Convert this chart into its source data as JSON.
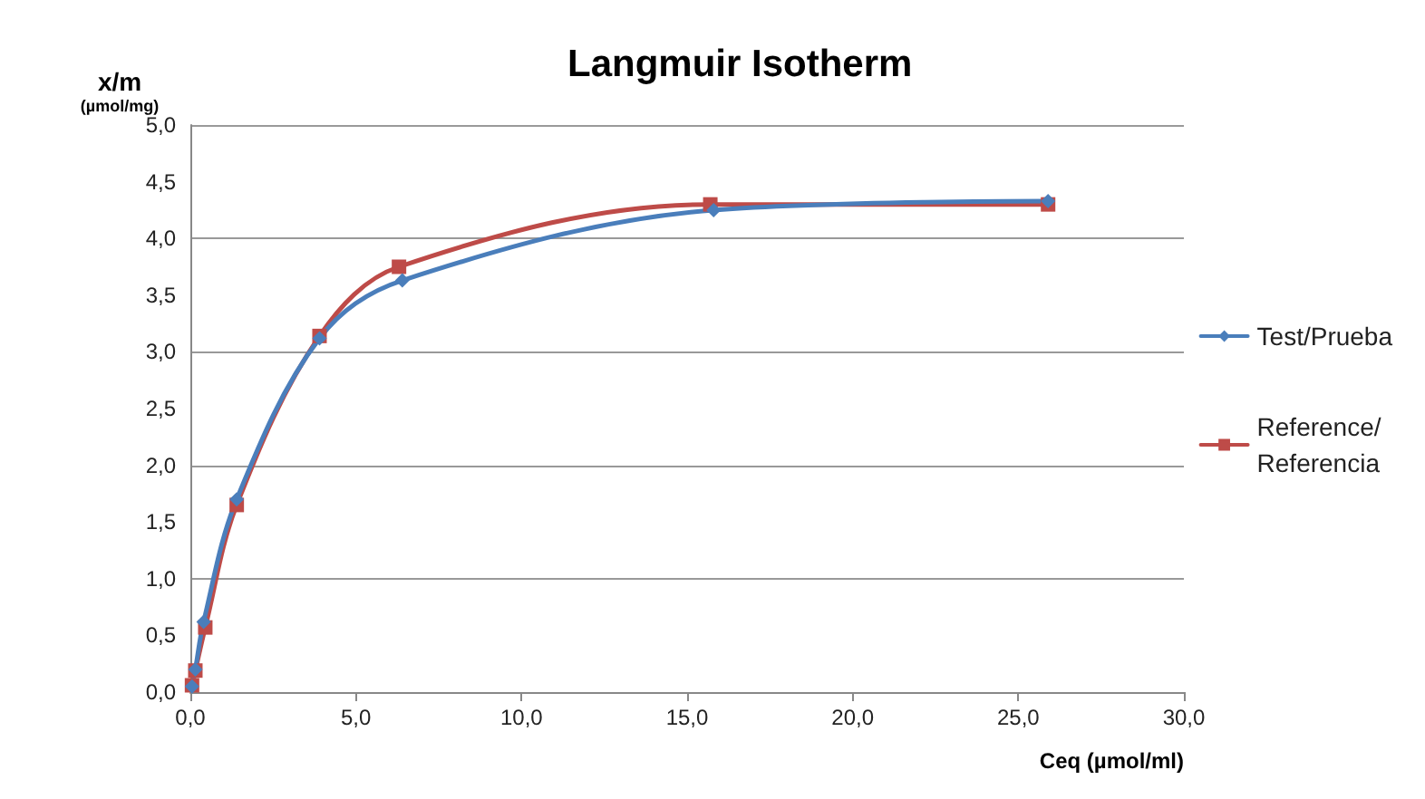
{
  "chart_data": {
    "type": "line",
    "title": "Langmuir Isotherm",
    "xlabel": "Ceq (µmol/ml)",
    "ylabel": "x/m (µmol/mg)",
    "xlim": [
      0,
      30
    ],
    "xticks": [
      {
        "value": 0,
        "label": "0,0"
      },
      {
        "value": 5,
        "label": "5,0"
      },
      {
        "value": 10,
        "label": "10,0"
      },
      {
        "value": 15,
        "label": "15,0"
      },
      {
        "value": 20,
        "label": "20,0"
      },
      {
        "value": 25,
        "label": "25,0"
      },
      {
        "value": 30,
        "label": "30,0"
      }
    ],
    "ylim": [
      0,
      5
    ],
    "yticks": [
      {
        "value": 0,
        "label": "0,0"
      },
      {
        "value": 0.5,
        "label": "0,5"
      },
      {
        "value": 1,
        "label": "1,0"
      },
      {
        "value": 1.5,
        "label": "1,5"
      },
      {
        "value": 2,
        "label": "2,0"
      },
      {
        "value": 2.5,
        "label": "2,5"
      },
      {
        "value": 3,
        "label": "3,0"
      },
      {
        "value": 3.5,
        "label": "3,5"
      },
      {
        "value": 4,
        "label": "4,0"
      },
      {
        "value": 4.5,
        "label": "4,5"
      },
      {
        "value": 5,
        "label": "5,0"
      }
    ],
    "grid": "y",
    "legend": "right",
    "line_style": "solid",
    "series": [
      {
        "name": "Test/Prueba",
        "color": "#4a7ebb",
        "marker": "diamond",
        "x": [
          0.05,
          0.15,
          0.4,
          1.4,
          3.9,
          6.4,
          15.8,
          25.9
        ],
        "values": [
          0.05,
          0.2,
          0.62,
          1.7,
          3.12,
          3.63,
          4.25,
          4.33
        ]
      },
      {
        "name": "Reference/\nReferencia",
        "color": "#be4b48",
        "marker": "square",
        "x": [
          0.05,
          0.15,
          0.45,
          1.4,
          3.9,
          6.3,
          15.7,
          25.9
        ],
        "values": [
          0.06,
          0.19,
          0.57,
          1.65,
          3.14,
          3.75,
          4.3,
          4.3
        ]
      }
    ]
  }
}
